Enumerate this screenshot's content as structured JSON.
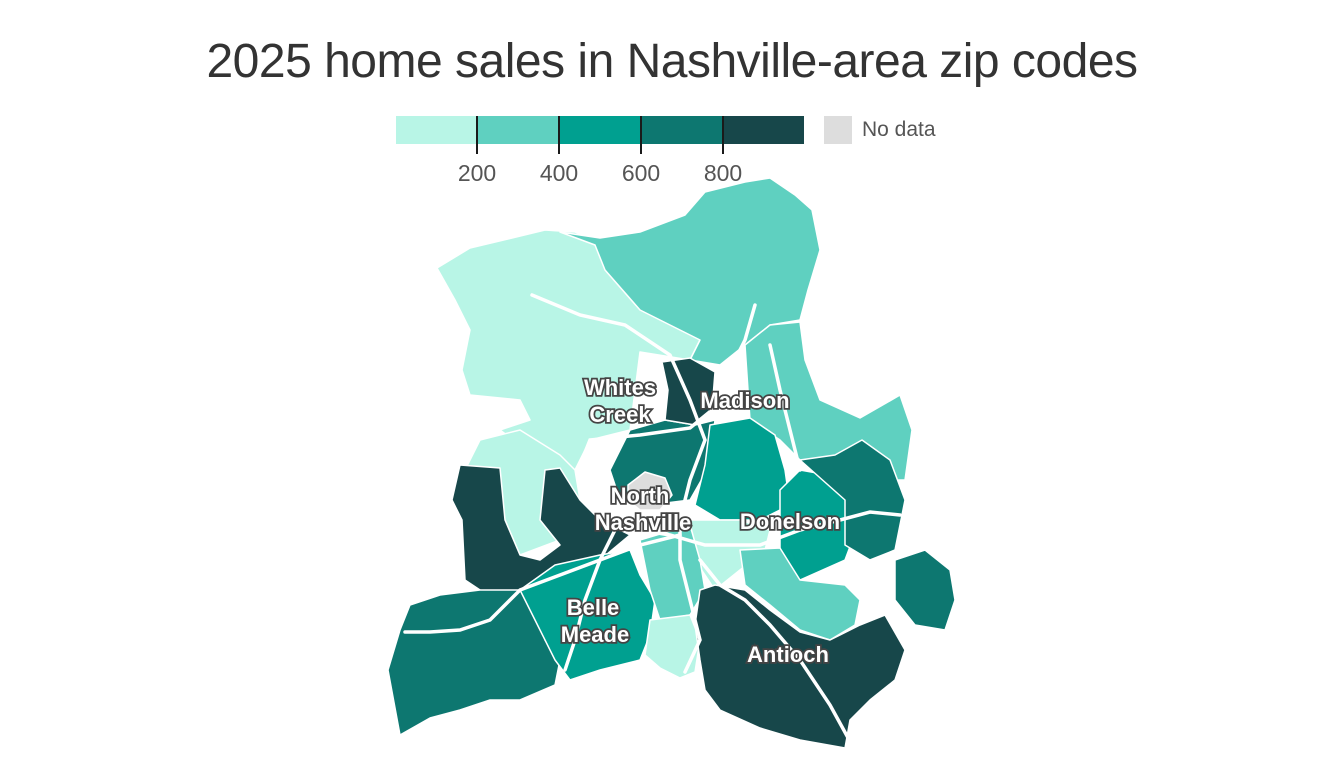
{
  "title": "2025 home sales in Nashville-area zip codes",
  "legend": {
    "bins": [
      {
        "color": "#b8f5e6"
      },
      {
        "color": "#5fd0c0"
      },
      {
        "color": "#00a090"
      },
      {
        "color": "#0d7770"
      },
      {
        "color": "#17474a"
      }
    ],
    "ticks": [
      "200",
      "400",
      "600",
      "800"
    ],
    "nodata_label": "No data",
    "nodata_color": "#dddddd"
  },
  "places": [
    {
      "lines": [
        "Whites",
        "Creek"
      ]
    },
    {
      "lines": [
        "Madison"
      ]
    },
    {
      "lines": [
        "North",
        "Nashville"
      ]
    },
    {
      "lines": [
        "Donelson"
      ]
    },
    {
      "lines": [
        "Belle",
        "Meade"
      ]
    },
    {
      "lines": [
        "Antioch"
      ]
    }
  ]
}
